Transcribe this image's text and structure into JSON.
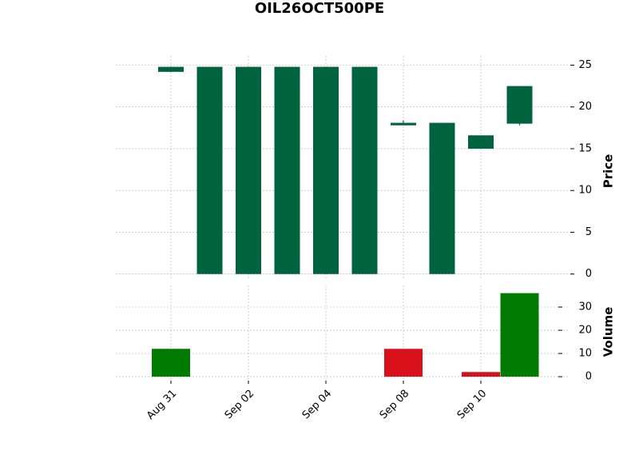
{
  "chart_data": {
    "type": "candlestick",
    "title": "OIL26OCT500PE",
    "categories": [
      "Aug 31",
      null,
      "Sep 02",
      null,
      "Sep 04",
      null,
      "Sep 08",
      null,
      "Sep 10",
      null
    ],
    "open": [
      24.2,
      0,
      0,
      0,
      0,
      0,
      17.8,
      0,
      16.6,
      18.0
    ],
    "high": [
      24.8,
      24.8,
      24.8,
      24.8,
      24.8,
      24.8,
      18.4,
      18.1,
      16.6,
      22.5
    ],
    "low": [
      24.2,
      0,
      0,
      0,
      0,
      0,
      17.8,
      0,
      15.0,
      17.8
    ],
    "close": [
      24.8,
      24.8,
      24.8,
      24.8,
      24.8,
      24.8,
      18.1,
      18.1,
      15.0,
      22.5
    ],
    "color": "#006340",
    "volume": [
      12,
      0,
      0,
      0,
      0,
      0,
      12,
      0,
      2,
      36
    ],
    "volume_colors": [
      "#007a00",
      "#007a00",
      "#007a00",
      "#007a00",
      "#007a00",
      "#007a00",
      "#d8101a",
      "#007a00",
      "#d8101a",
      "#007a00"
    ],
    "ylabel": "Price",
    "ylim": [
      -0.7,
      26.1
    ],
    "yticks": [
      0,
      5,
      10,
      15,
      20,
      25
    ],
    "volume_label": "Volume",
    "volume_ylim": [
      -1.7,
      39.3
    ],
    "volume_yticks": [
      0,
      10,
      20,
      30
    ],
    "grid": true
  }
}
